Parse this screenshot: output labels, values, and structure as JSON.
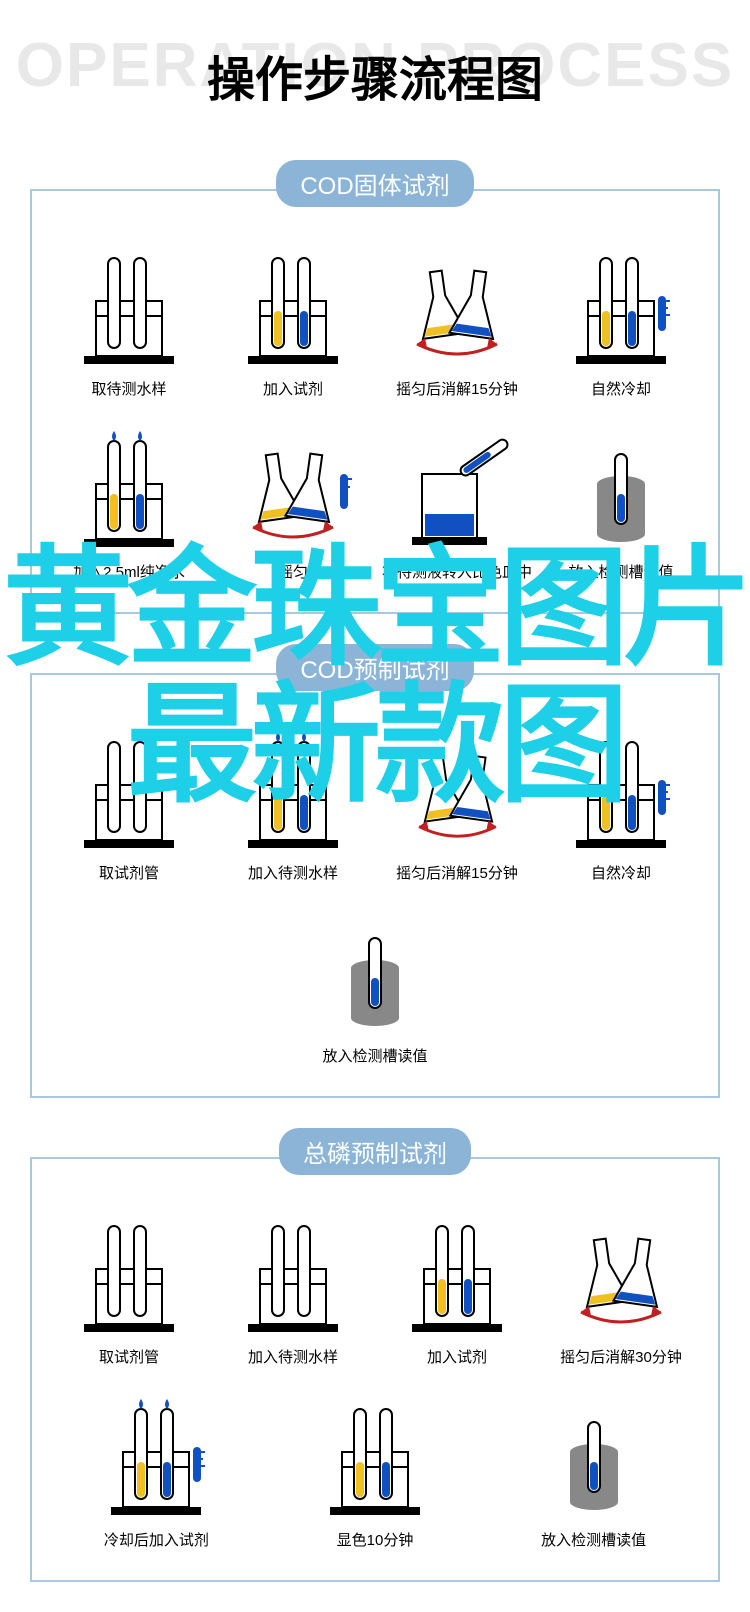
{
  "header": {
    "bg_text": "OPERATION PROCESS",
    "title": "操作步骤流程图"
  },
  "watermark": "黄金珠宝图片最新款图",
  "colors": {
    "accent": "#8bb4d6",
    "border": "#a8c8e0",
    "bg_text": "#e8e8e8",
    "watermark": "#1dd0e8",
    "yellow": "#f0c020",
    "blue": "#1050c0",
    "grey": "#888888",
    "black": "#000000"
  },
  "sections": [
    {
      "id": "cod-solid",
      "tab": "COD固体试剂",
      "steps": [
        {
          "label": "取待测水样",
          "type": "rack-empty"
        },
        {
          "label": "加入试剂",
          "type": "rack-yb"
        },
        {
          "label": "摇匀后消解15分钟",
          "type": "flask-shake"
        },
        {
          "label": "自然冷却",
          "type": "rack-thermo"
        },
        {
          "label": "加入2.5ml纯净水",
          "type": "rack-drops"
        },
        {
          "label": "摇匀",
          "type": "flask-shake-thermo"
        },
        {
          "label": "将待测液转入比色皿中",
          "type": "pour"
        },
        {
          "label": "放入检测槽读值",
          "type": "cup"
        }
      ]
    },
    {
      "id": "cod-premade",
      "tab": "COD预制试剂",
      "columns": 5,
      "steps": [
        {
          "label": "取试剂管",
          "type": "rack-empty"
        },
        {
          "label": "加入待测水样",
          "type": "rack-drops"
        },
        {
          "label": "摇匀后消解15分钟",
          "type": "flask-shake"
        },
        {
          "label": "自然冷却",
          "type": "rack-thermo"
        },
        {
          "label": "放入检测槽读值",
          "type": "cup"
        }
      ]
    },
    {
      "id": "phosphorus",
      "tab": "总磷预制试剂",
      "steps": [
        {
          "label": "取试剂管",
          "type": "rack-empty"
        },
        {
          "label": "加入待测水样",
          "type": "rack-empty"
        },
        {
          "label": "加入试剂",
          "type": "rack-yb"
        },
        {
          "label": "摇匀后消解30分钟",
          "type": "flask-shake"
        },
        {
          "label": "冷却后加入试剂",
          "type": "rack-drops-thermo"
        },
        {
          "label": "显色10分钟",
          "type": "rack-yb"
        },
        {
          "label": "放入检测槽读值",
          "type": "cup"
        }
      ]
    }
  ]
}
